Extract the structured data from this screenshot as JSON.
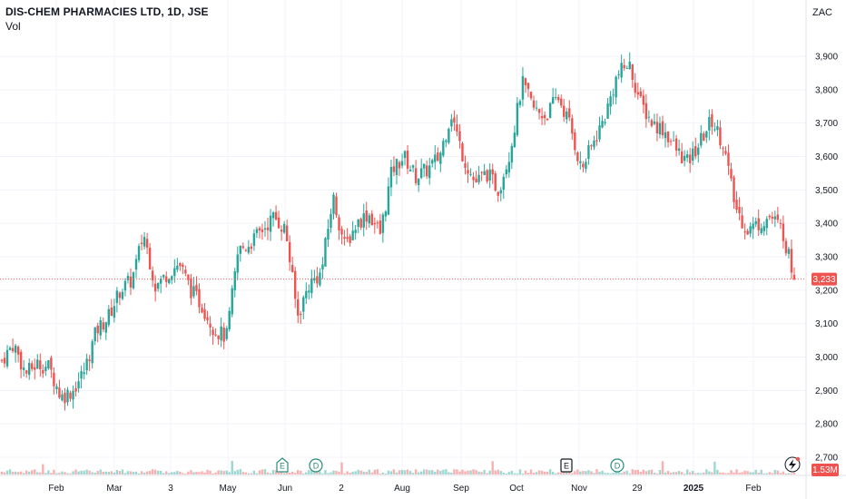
{
  "header": {
    "symbol_title": "DIS-CHEM PHARMACIES LTD, 1D, JSE",
    "volume_label": "Vol",
    "currency": "ZAC"
  },
  "price_badge": "3,233",
  "volume_badge": "1.53M",
  "colors": {
    "up": "#26a69a",
    "down": "#ef5350",
    "grid": "#f0f3fa",
    "axis_text": "#131722",
    "price_line": "#ef5350",
    "event_badge": "#2a8a7a",
    "event_badge_dark": "#131722"
  },
  "events": [
    {
      "letter": "E",
      "shape": "pentagon",
      "date_index": 3
    },
    {
      "letter": "D",
      "shape": "circle",
      "date_index": 4
    },
    {
      "letter": "E",
      "shape": "square",
      "date_index": 9
    },
    {
      "letter": "D",
      "shape": "circle",
      "date_index": 10
    }
  ],
  "chart_data": {
    "type": "candlestick",
    "y_ticks": [
      "3,900",
      "3,800",
      "3,700",
      "3,600",
      "3,500",
      "3,400",
      "3,300",
      "3,200",
      "3,100",
      "3,000",
      "2,900",
      "2,800",
      "2,700"
    ],
    "x_ticks": [
      "Feb",
      "Mar",
      "3",
      "May",
      "Jun",
      "2",
      "Aug",
      "Sep",
      "Oct",
      "Nov",
      "29",
      "2025",
      "Feb"
    ],
    "ylim": [
      2660,
      4020
    ],
    "last_price": 3233,
    "close_series": [
      2990,
      3040,
      2950,
      2980,
      2970,
      2880,
      2900,
      2960,
      3080,
      3120,
      3200,
      3230,
      3370,
      3210,
      3250,
      3280,
      3200,
      3150,
      3080,
      3060,
      3320,
      3340,
      3380,
      3420,
      3380,
      3120,
      3220,
      3250,
      3480,
      3330,
      3400,
      3430,
      3370,
      3560,
      3600,
      3540,
      3560,
      3600,
      3730,
      3600,
      3520,
      3550,
      3500,
      3620,
      3820,
      3740,
      3720,
      3780,
      3700,
      3560,
      3640,
      3720,
      3840,
      3880,
      3760,
      3700,
      3680,
      3620,
      3580,
      3640,
      3710,
      3640,
      3450,
      3380,
      3400,
      3420,
      3380,
      3233
    ],
    "gridlines": true
  }
}
